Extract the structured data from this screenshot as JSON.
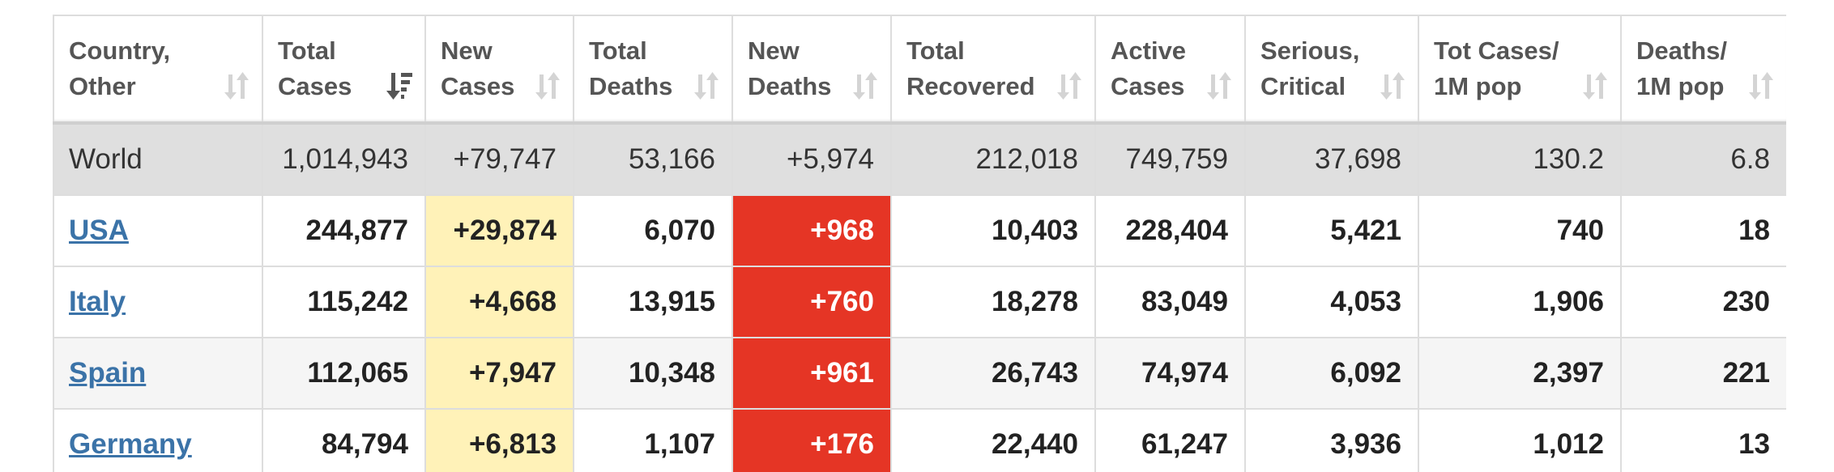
{
  "table": {
    "headers": [
      {
        "label": "Country,\nOther",
        "sort": "unsorted"
      },
      {
        "label": "Total\nCases",
        "sort": "sorted-desc"
      },
      {
        "label": "New\nCases",
        "sort": "unsorted"
      },
      {
        "label": "Total\nDeaths",
        "sort": "unsorted"
      },
      {
        "label": "New\nDeaths",
        "sort": "unsorted"
      },
      {
        "label": "Total\nRecovered",
        "sort": "unsorted"
      },
      {
        "label": "Active\nCases",
        "sort": "unsorted"
      },
      {
        "label": "Serious,\nCritical",
        "sort": "unsorted"
      },
      {
        "label": "Tot Cases/\n1M pop",
        "sort": "unsorted"
      },
      {
        "label": "Deaths/\n1M pop",
        "sort": "unsorted"
      }
    ],
    "world": {
      "name": "World",
      "total_cases": "1,014,943",
      "new_cases": "+79,747",
      "total_deaths": "53,166",
      "new_deaths": "+5,974",
      "total_recovered": "212,018",
      "active_cases": "749,759",
      "serious_critical": "37,698",
      "tot_cases_per_1m": "130.2",
      "deaths_per_1m": "6.8"
    },
    "rows": [
      {
        "name": "USA",
        "total_cases": "244,877",
        "new_cases": "+29,874",
        "total_deaths": "6,070",
        "new_deaths": "+968",
        "total_recovered": "10,403",
        "active_cases": "228,404",
        "serious_critical": "5,421",
        "tot_cases_per_1m": "740",
        "deaths_per_1m": "18"
      },
      {
        "name": "Italy",
        "total_cases": "115,242",
        "new_cases": "+4,668",
        "total_deaths": "13,915",
        "new_deaths": "+760",
        "total_recovered": "18,278",
        "active_cases": "83,049",
        "serious_critical": "4,053",
        "tot_cases_per_1m": "1,906",
        "deaths_per_1m": "230"
      },
      {
        "name": "Spain",
        "total_cases": "112,065",
        "new_cases": "+7,947",
        "total_deaths": "10,348",
        "new_deaths": "+961",
        "total_recovered": "26,743",
        "active_cases": "74,974",
        "serious_critical": "6,092",
        "tot_cases_per_1m": "2,397",
        "deaths_per_1m": "221"
      },
      {
        "name": "Germany",
        "total_cases": "84,794",
        "new_cases": "+6,813",
        "total_deaths": "1,107",
        "new_deaths": "+176",
        "total_recovered": "22,440",
        "active_cases": "61,247",
        "serious_critical": "3,936",
        "tot_cases_per_1m": "1,012",
        "deaths_per_1m": "13"
      }
    ]
  },
  "colors": {
    "world_row_bg": "#dfdfdf",
    "new_cases_bg": "#fff2b8",
    "new_deaths_bg": "#e53525",
    "link": "#3b73a8",
    "border": "#dddddd"
  },
  "icons": {
    "unsorted": "sort-arrows-icon",
    "sorted-desc": "sort-descending-icon"
  }
}
